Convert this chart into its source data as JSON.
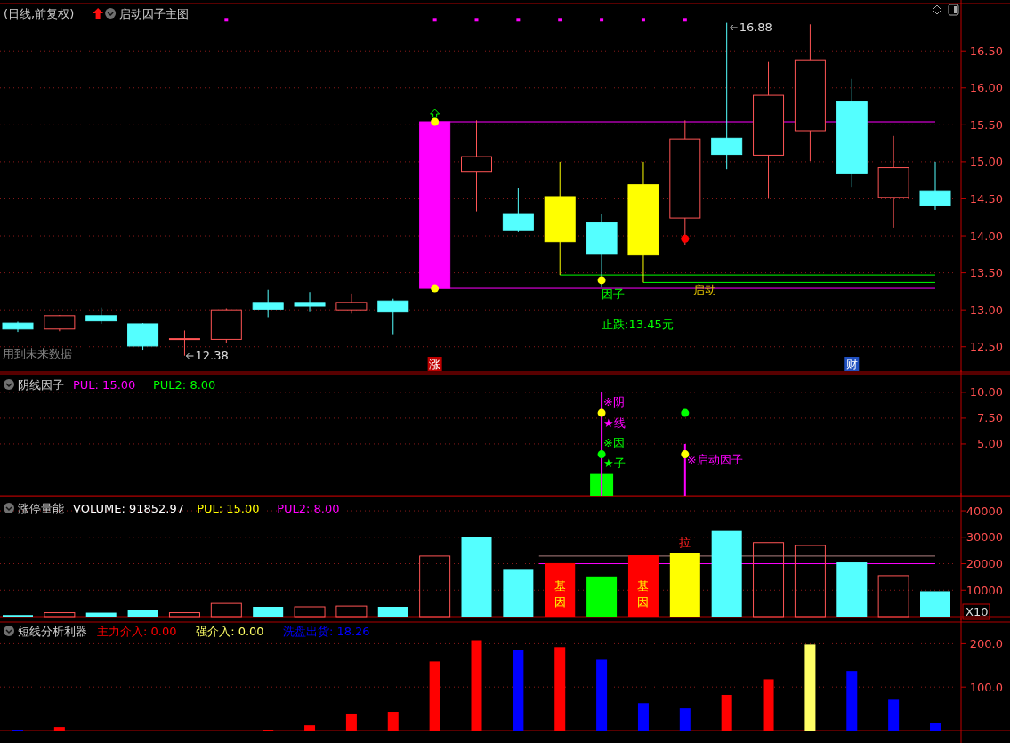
{
  "chart_data": [
    {
      "type": "candlestick",
      "title": "(日线,前复权)",
      "subtitle": "启动因子主图",
      "categories": [
        null,
        null,
        null,
        null,
        null,
        null,
        null,
        null,
        null,
        null,
        null,
        null,
        null,
        null,
        null,
        null,
        null,
        null,
        null,
        null,
        null,
        null,
        null
      ],
      "ohlc": [
        [
          12.82,
          12.84,
          12.7,
          12.74
        ],
        [
          12.74,
          12.93,
          12.71,
          12.92
        ],
        [
          12.92,
          13.03,
          12.81,
          12.85
        ],
        [
          12.81,
          12.82,
          12.46,
          12.51
        ],
        [
          12.6,
          12.72,
          12.38,
          12.61
        ],
        [
          12.6,
          13.02,
          12.55,
          13.0
        ],
        [
          13.1,
          13.27,
          12.9,
          13.01
        ],
        [
          13.1,
          13.24,
          12.97,
          13.05
        ],
        [
          13.0,
          13.22,
          12.95,
          13.1
        ],
        [
          13.12,
          13.15,
          12.67,
          12.97
        ],
        [
          13.29,
          15.54,
          13.28,
          15.54
        ],
        [
          14.87,
          15.56,
          14.33,
          15.07
        ],
        [
          14.3,
          14.65,
          14.05,
          14.07
        ],
        [
          14.53,
          15.0,
          13.47,
          13.92
        ],
        [
          14.18,
          14.29,
          13.3,
          13.75
        ],
        [
          13.74,
          15.0,
          13.37,
          14.69
        ],
        [
          14.24,
          15.56,
          13.88,
          15.31
        ],
        [
          15.32,
          16.88,
          14.9,
          15.1
        ],
        [
          15.09,
          16.35,
          14.5,
          15.9
        ],
        [
          15.42,
          16.86,
          15.01,
          16.38
        ],
        [
          15.81,
          16.12,
          14.66,
          14.85
        ],
        [
          14.52,
          15.35,
          14.11,
          14.92
        ],
        [
          14.6,
          15.0,
          14.35,
          14.41
        ]
      ],
      "colors": [
        "#54ffff",
        "#ff5555",
        "#54ffff",
        "#54ffff",
        "#ff5555",
        "#ff5555",
        "#54ffff",
        "#54ffff",
        "#ff5555",
        "#54ffff",
        "#ff00ff",
        "#ff5555",
        "#54ffff",
        "#ffff00",
        "#54ffff",
        "#ffff00",
        "#ff5555",
        "#54ffff",
        "#ff5555",
        "#ff5555",
        "#54ffff",
        "#ff5555",
        "#54ffff"
      ],
      "series": [
        {
          "type": "scatter",
          "marker": "square",
          "color": "#ff00ff",
          "values": [
            null,
            null,
            null,
            null,
            null,
            16.92,
            null,
            null,
            null,
            null,
            16.92,
            16.92,
            16.92,
            16.92,
            16.92,
            16.92,
            16.92,
            null,
            null,
            null,
            null,
            null,
            null
          ]
        },
        {
          "type": "scatter",
          "marker": "circle",
          "color": "#ffff00",
          "values": [
            null,
            null,
            null,
            null,
            null,
            null,
            null,
            null,
            null,
            null,
            15.54,
            null,
            null,
            null,
            null,
            null,
            null,
            null,
            null,
            null,
            null,
            null,
            null
          ]
        },
        {
          "type": "scatter",
          "marker": "circle",
          "color": "#ffff00",
          "values": [
            null,
            null,
            null,
            null,
            null,
            null,
            null,
            null,
            null,
            null,
            13.29,
            null,
            null,
            null,
            13.4,
            null,
            null,
            null,
            null,
            null,
            null,
            null,
            null
          ]
        },
        {
          "type": "scatter",
          "marker": "circle",
          "color": "#ff0000",
          "values": [
            null,
            null,
            null,
            null,
            null,
            null,
            null,
            null,
            null,
            null,
            null,
            null,
            null,
            null,
            null,
            null,
            13.96,
            null,
            null,
            null,
            null,
            null,
            null
          ]
        }
      ],
      "ylim": [
        12.16,
        17.14
      ],
      "yticks": [
        {
          "value": 12.5,
          "label": "12.50"
        },
        {
          "value": 13,
          "label": "13.00"
        },
        {
          "value": 13.5,
          "label": "13.50"
        },
        {
          "value": 14,
          "label": "14.00"
        },
        {
          "value": 14.5,
          "label": "14.50"
        },
        {
          "value": 15,
          "label": "15.00"
        },
        {
          "value": 15.5,
          "label": "15.50"
        },
        {
          "value": 16,
          "label": "16.00"
        },
        {
          "value": 16.5,
          "label": "16.50"
        }
      ],
      "grid": "y",
      "tick_labels": "y",
      "ref_lines": [
        {
          "axis": "y",
          "value": 15.54,
          "color": "#ff00ff"
        },
        {
          "axis": "y",
          "value": 13.29,
          "color": "#ff00ff"
        },
        {
          "axis": "y",
          "value": 13.47,
          "color": "#00ff00"
        },
        {
          "axis": "y",
          "value": 13.37,
          "color": "#00ff00",
          "label": "启动"
        }
      ],
      "annotations": [
        "16.88",
        "12.38",
        "因子",
        "止跌:13.45元",
        "涨",
        "财",
        "用到未来数据"
      ]
    },
    {
      "type": "bar",
      "title": "阴线因子",
      "categories": [
        null,
        null,
        null,
        null,
        null,
        null,
        null,
        null,
        null,
        null,
        null,
        null,
        null,
        null,
        null,
        null,
        null,
        null,
        null,
        null,
        null,
        null,
        null
      ],
      "series": [
        {
          "type": "bar",
          "color": "#00ff00",
          "values": [
            null,
            null,
            null,
            null,
            null,
            null,
            null,
            null,
            null,
            null,
            null,
            null,
            null,
            null,
            2.1,
            null,
            null,
            null,
            null,
            null,
            null,
            null,
            null
          ]
        },
        {
          "type": "bar",
          "color": "#ff00ff",
          "values": [
            null,
            null,
            null,
            null,
            null,
            null,
            null,
            null,
            null,
            null,
            null,
            null,
            null,
            null,
            10,
            null,
            5,
            null,
            null,
            null,
            null,
            null,
            null
          ]
        },
        {
          "type": "scatter",
          "marker": "circle",
          "color": "#ffff00",
          "values": [
            null,
            null,
            null,
            null,
            null,
            null,
            null,
            null,
            null,
            null,
            null,
            null,
            null,
            null,
            8,
            null,
            4,
            null,
            null,
            null,
            null,
            null,
            null
          ]
        },
        {
          "type": "scatter",
          "marker": "circle",
          "color": "#00ff00",
          "values": [
            null,
            null,
            null,
            null,
            null,
            null,
            null,
            null,
            null,
            null,
            null,
            null,
            null,
            null,
            4,
            null,
            8,
            null,
            null,
            null,
            null,
            null,
            null
          ]
        }
      ],
      "ylim": [
        0,
        11.8
      ],
      "yticks": [
        {
          "value": 5,
          "label": "5.00"
        },
        {
          "value": 7.5,
          "label": "7.50"
        },
        {
          "value": 10,
          "label": "10.00"
        }
      ],
      "grid": "y",
      "tick_labels": "y",
      "annotations": [
        "PUL: 15.00",
        "PUL2: 8.00",
        "※阴",
        "★线",
        "※因",
        "★子",
        "※启动因子"
      ]
    },
    {
      "type": "bar",
      "title": "涨停量能",
      "categories": [
        null,
        null,
        null,
        null,
        null,
        null,
        null,
        null,
        null,
        null,
        null,
        null,
        null,
        null,
        null,
        null,
        null,
        null,
        null,
        null,
        null,
        null,
        null
      ],
      "values": [
        600,
        1500,
        1500,
        2400,
        1500,
        5000,
        3700,
        3700,
        4000,
        3700,
        22900,
        30000,
        17700,
        20200,
        15200,
        23200,
        24000,
        32400,
        28000,
        26900,
        20500,
        15500,
        9600
      ],
      "colors": [
        "#54ffff",
        "#ff5555",
        "#54ffff",
        "#54ffff",
        "#ff5555",
        "#ff5555",
        "#54ffff",
        "#ff5555",
        "#ff5555",
        "#54ffff",
        "#ff5555",
        "#54ffff",
        "#54ffff",
        "#ff0000",
        "#00ff00",
        "#ff0000",
        "#ffff00",
        "#54ffff",
        "#ff5555",
        "#ff5555",
        "#54ffff",
        "#ff5555",
        "#54ffff"
      ],
      "ylim": [
        0,
        45400
      ],
      "yticks": [
        10000,
        20000,
        30000,
        40000
      ],
      "grid": "y",
      "tick_labels": "y",
      "ref_lines": [
        {
          "axis": "y",
          "value": 20000,
          "color": "#ff00ff"
        },
        {
          "axis": "y",
          "value": 22900,
          "color": "#b08080"
        }
      ],
      "annotations": [
        "VOLUME: 91852.97",
        "PUL: 15.00",
        "PUL2: 8.00",
        "基因",
        "基因",
        "拉",
        "X10"
      ]
    },
    {
      "type": "bar",
      "title": "短线分析利器",
      "categories": [
        null,
        null,
        null,
        null,
        null,
        null,
        null,
        null,
        null,
        null,
        null,
        null,
        null,
        null,
        null,
        null,
        null,
        null,
        null,
        null,
        null,
        null,
        null
      ],
      "series": [
        {
          "name": "主力介入: 0.00",
          "color": "#ff0000",
          "values": [
            null,
            8,
            null,
            null,
            null,
            null,
            2,
            12,
            39,
            43,
            159,
            208,
            null,
            192,
            null,
            null,
            null,
            82,
            118,
            null,
            null,
            null,
            null
          ]
        },
        {
          "name": "强介入: 0.00",
          "color": "#ffff66",
          "values": [
            null,
            null,
            null,
            null,
            null,
            null,
            null,
            null,
            null,
            null,
            null,
            null,
            null,
            null,
            null,
            null,
            null,
            null,
            null,
            198,
            null,
            null,
            null
          ]
        },
        {
          "name": "洗盘出货: 18.26",
          "color": "#0000ff",
          "values": [
            2,
            null,
            null,
            null,
            null,
            null,
            null,
            null,
            null,
            null,
            null,
            null,
            186,
            null,
            163,
            63,
            51,
            null,
            null,
            null,
            137,
            71,
            18
          ]
        }
      ],
      "ylim": [
        0,
        250
      ],
      "yticks": [
        {
          "value": 100,
          "label": "100.0"
        },
        {
          "value": 200,
          "label": "200.0"
        }
      ],
      "grid": "y",
      "tick_labels": "y",
      "legend": "top left"
    }
  ]
}
